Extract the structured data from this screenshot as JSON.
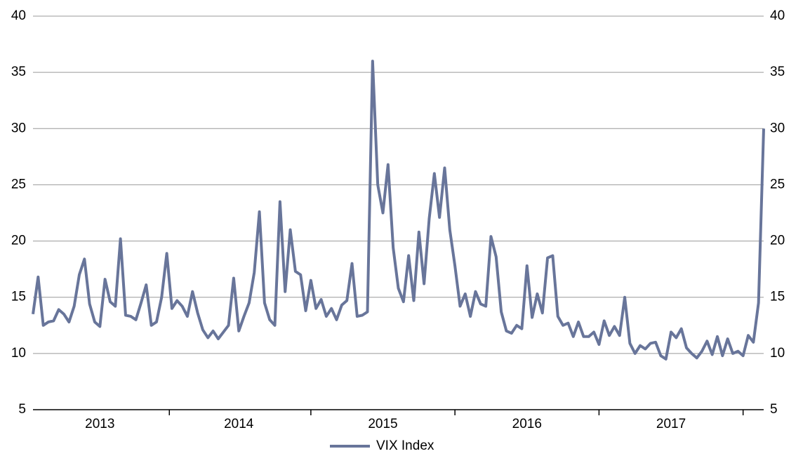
{
  "chart_data": {
    "type": "line",
    "categories": [
      null,
      null,
      null,
      null,
      null,
      null,
      null,
      null,
      null,
      null,
      null,
      null,
      null,
      "2013",
      null,
      null,
      null,
      null,
      null,
      null,
      null,
      null,
      null,
      null,
      null,
      null,
      null,
      null,
      null,
      null,
      null,
      null,
      null,
      null,
      null,
      null,
      null,
      null,
      null,
      null,
      "2014",
      null,
      null,
      null,
      null,
      null,
      null,
      null,
      null,
      null,
      null,
      null,
      null,
      null,
      null,
      null,
      null,
      null,
      null,
      null,
      null,
      null,
      null,
      null,
      null,
      null,
      null,
      null,
      "2015",
      null,
      null,
      null,
      null,
      null,
      null,
      null,
      null,
      null,
      null,
      null,
      null,
      null,
      null,
      null,
      null,
      null,
      null,
      null,
      null,
      null,
      null,
      null,
      null,
      null,
      null,
      null,
      "2016",
      null,
      null,
      null,
      null,
      null,
      null,
      null,
      null,
      null,
      null,
      null,
      null,
      null,
      null,
      null,
      null,
      null,
      null,
      null,
      null,
      null,
      null,
      null,
      null,
      null,
      null,
      null,
      "2017",
      null,
      null,
      null,
      null,
      null,
      null,
      null,
      null,
      null,
      null,
      null,
      null,
      null,
      null,
      null,
      null,
      null,
      null
    ],
    "series": [
      {
        "name": "VIX Index",
        "color": "#68759a",
        "values": [
          13.5,
          16.8,
          12.5,
          12.8,
          12.9,
          13.9,
          13.5,
          12.8,
          14.2,
          17.0,
          18.4,
          14.4,
          12.8,
          12.4,
          16.6,
          14.6,
          14.2,
          20.2,
          13.4,
          13.3,
          13.0,
          14.5,
          16.1,
          12.5,
          12.8,
          15.0,
          18.9,
          14.0,
          14.7,
          14.2,
          13.3,
          15.5,
          13.6,
          12.1,
          11.4,
          12.0,
          11.3,
          11.9,
          12.5,
          16.7,
          12.0,
          13.3,
          14.5,
          17.2,
          22.6,
          14.5,
          13.0,
          12.5,
          23.5,
          15.5,
          21.0,
          17.3,
          17.0,
          13.8,
          16.5,
          14.0,
          14.8,
          13.3,
          14.0,
          13.0,
          14.3,
          14.7,
          18.0,
          13.3,
          13.4,
          13.7,
          36.0,
          25.0,
          22.5,
          26.8,
          19.4,
          15.8,
          14.6,
          18.7,
          14.7,
          20.8,
          16.2,
          22.0,
          26.0,
          22.1,
          26.5,
          21.0,
          17.8,
          14.2,
          15.3,
          13.3,
          15.5,
          14.4,
          14.2,
          20.4,
          18.6,
          13.7,
          12.0,
          11.8,
          12.5,
          12.2,
          17.8,
          13.2,
          15.3,
          13.6,
          18.5,
          18.7,
          13.3,
          12.5,
          12.7,
          11.5,
          12.8,
          11.5,
          11.5,
          11.9,
          10.8,
          12.9,
          11.6,
          12.4,
          11.6,
          15.0,
          10.9,
          10.0,
          10.7,
          10.4,
          10.9,
          11.0,
          9.8,
          9.5,
          11.9,
          11.4,
          12.2,
          10.5,
          10.0,
          9.6,
          10.2,
          11.1,
          9.9,
          11.5,
          9.8,
          11.3,
          10.0,
          10.2,
          9.8,
          11.6,
          11.0,
          14.5,
          30.0
        ]
      }
    ],
    "ylim": [
      5,
      40
    ],
    "yticks": [
      5,
      10,
      15,
      20,
      25,
      30,
      35,
      40
    ],
    "y2lim": [
      5,
      40
    ],
    "y2ticks": [
      5,
      10,
      15,
      20,
      25,
      30,
      35,
      40
    ],
    "grid": true,
    "legend": "bottom"
  }
}
